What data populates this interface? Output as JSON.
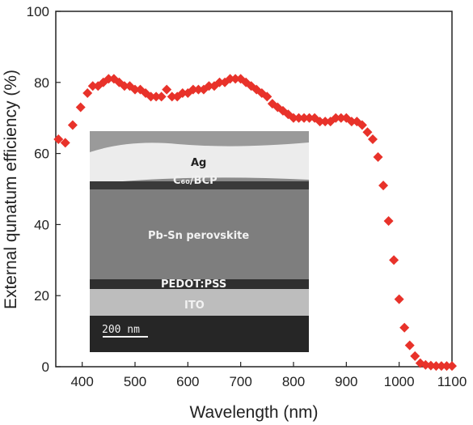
{
  "chart_data": {
    "type": "scatter",
    "xlabel": "Wavelength (nm)",
    "ylabel": "External qunatum efficiency (%)",
    "xlim": [
      350,
      1100
    ],
    "ylim": [
      0,
      100
    ],
    "xticks": [
      "400",
      "500",
      "600",
      "700",
      "800",
      "900",
      "1000",
      "1100"
    ],
    "yticks": [
      "0",
      "20",
      "40",
      "60",
      "80",
      "100"
    ],
    "grid": false,
    "series": [
      {
        "marker": "diamond",
        "color": "#e8322a",
        "points": [
          [
            355,
            64
          ],
          [
            368,
            63
          ],
          [
            382,
            68
          ],
          [
            397,
            73
          ],
          [
            410,
            77
          ],
          [
            420,
            79
          ],
          [
            430,
            79
          ],
          [
            440,
            80
          ],
          [
            450,
            81
          ],
          [
            460,
            81
          ],
          [
            470,
            80
          ],
          [
            480,
            79
          ],
          [
            490,
            79
          ],
          [
            500,
            78
          ],
          [
            510,
            78
          ],
          [
            520,
            77
          ],
          [
            530,
            76
          ],
          [
            540,
            76
          ],
          [
            550,
            76
          ],
          [
            560,
            78
          ],
          [
            570,
            76
          ],
          [
            580,
            76
          ],
          [
            590,
            77
          ],
          [
            600,
            77
          ],
          [
            610,
            78
          ],
          [
            620,
            78
          ],
          [
            630,
            78
          ],
          [
            640,
            79
          ],
          [
            650,
            79
          ],
          [
            660,
            80
          ],
          [
            670,
            80
          ],
          [
            680,
            81
          ],
          [
            690,
            81
          ],
          [
            700,
            81
          ],
          [
            710,
            80
          ],
          [
            720,
            79
          ],
          [
            730,
            78
          ],
          [
            740,
            77
          ],
          [
            750,
            76
          ],
          [
            760,
            74
          ],
          [
            770,
            73
          ],
          [
            780,
            72
          ],
          [
            790,
            71
          ],
          [
            800,
            70
          ],
          [
            810,
            70
          ],
          [
            820,
            70
          ],
          [
            830,
            70
          ],
          [
            840,
            70
          ],
          [
            850,
            69
          ],
          [
            860,
            69
          ],
          [
            870,
            69
          ],
          [
            880,
            70
          ],
          [
            890,
            70
          ],
          [
            900,
            70
          ],
          [
            910,
            69
          ],
          [
            920,
            69
          ],
          [
            930,
            68
          ],
          [
            940,
            66
          ],
          [
            950,
            64
          ],
          [
            960,
            59
          ],
          [
            970,
            51
          ],
          [
            980,
            41
          ],
          [
            990,
            30
          ],
          [
            1000,
            19
          ],
          [
            1010,
            11
          ],
          [
            1020,
            6
          ],
          [
            1030,
            3
          ],
          [
            1040,
            1
          ],
          [
            1050,
            0.5
          ],
          [
            1060,
            0.3
          ],
          [
            1070,
            0.2
          ],
          [
            1080,
            0.2
          ],
          [
            1090,
            0.2
          ],
          [
            1100,
            0.2
          ]
        ]
      }
    ]
  },
  "inset": {
    "layers": [
      "Ag",
      "C₆₀/BCP",
      "Pb-Sn perovskite",
      "PEDOT:PSS",
      "ITO"
    ],
    "scale_bar": "200  nm"
  }
}
